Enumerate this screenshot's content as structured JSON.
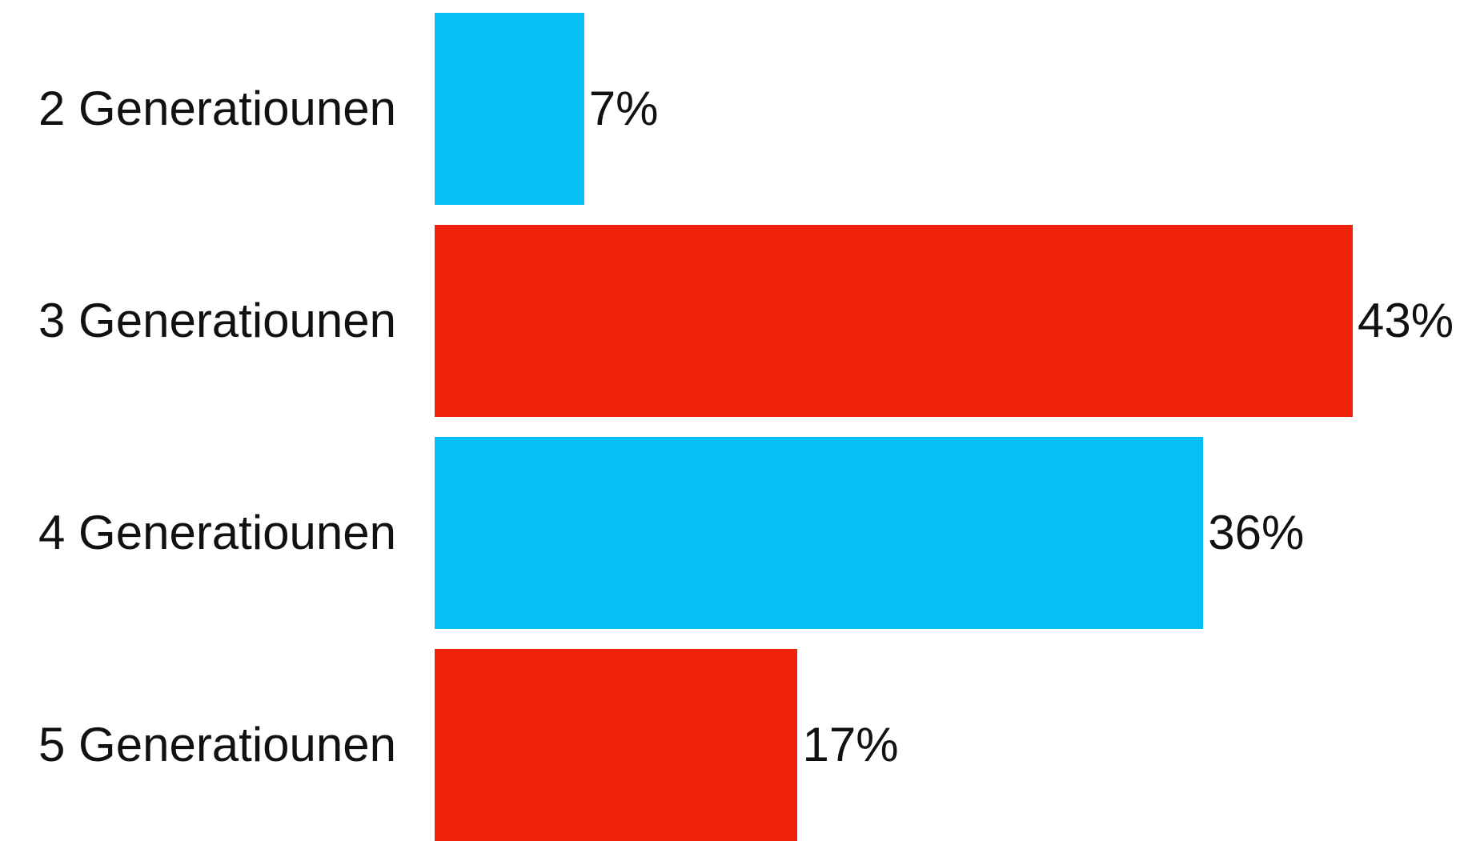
{
  "chart_data": {
    "type": "bar",
    "orientation": "horizontal",
    "categories": [
      "2 Generatiounen",
      "3 Generatiounen",
      "4 Generatiounen",
      "5 Generatiounen"
    ],
    "values": [
      7,
      43,
      36,
      17
    ],
    "value_labels": [
      "7%",
      "43%",
      "36%",
      "17%"
    ],
    "unit": "%",
    "bar_colors": [
      "#05BFF5",
      "#EF230C",
      "#05BFF5",
      "#EF230C"
    ],
    "title": "",
    "xlabel": "",
    "ylabel": "",
    "xlim": [
      0,
      43
    ],
    "grid": false,
    "legend": "none"
  }
}
